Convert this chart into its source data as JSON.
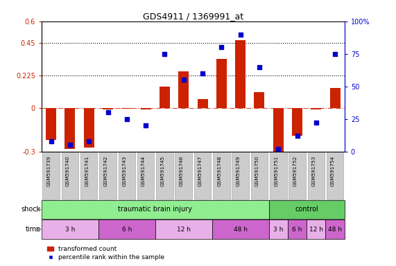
{
  "title": "GDS4911 / 1369991_at",
  "samples": [
    "GSM591739",
    "GSM591740",
    "GSM591741",
    "GSM591742",
    "GSM591743",
    "GSM591744",
    "GSM591745",
    "GSM591746",
    "GSM591747",
    "GSM591748",
    "GSM591749",
    "GSM591750",
    "GSM591751",
    "GSM591752",
    "GSM591753",
    "GSM591754"
  ],
  "red_values": [
    -0.22,
    -0.28,
    -0.27,
    -0.01,
    -0.005,
    -0.01,
    0.15,
    0.255,
    0.065,
    0.34,
    0.47,
    0.11,
    -0.33,
    -0.19,
    -0.01,
    0.14
  ],
  "blue_values_pct": [
    8,
    5,
    8,
    30,
    25,
    20,
    75,
    55,
    60,
    80,
    90,
    65,
    2,
    12,
    22,
    75
  ],
  "ylim_left": [
    -0.3,
    0.6
  ],
  "ylim_right": [
    0,
    100
  ],
  "yticks_left": [
    -0.3,
    0.0,
    0.225,
    0.45,
    0.6
  ],
  "ytick_labels_left": [
    "-0.3",
    "0",
    "0.225",
    "0.45",
    "0.6"
  ],
  "yticks_right": [
    0,
    25,
    50,
    75,
    100
  ],
  "ytick_labels_right": [
    "0",
    "25",
    "50",
    "75",
    "100%"
  ],
  "hlines": [
    0.225,
    0.45
  ],
  "zero_line": 0.0,
  "shock_groups": [
    {
      "label": "traumatic brain injury",
      "start": 0,
      "end": 12,
      "color": "#90ee90"
    },
    {
      "label": "control",
      "start": 12,
      "end": 16,
      "color": "#66cc66"
    }
  ],
  "time_groups": [
    {
      "label": "3 h",
      "start": 0,
      "end": 3,
      "color": "#e8b0e8"
    },
    {
      "label": "6 h",
      "start": 3,
      "end": 6,
      "color": "#cc66cc"
    },
    {
      "label": "12 h",
      "start": 6,
      "end": 9,
      "color": "#e8b0e8"
    },
    {
      "label": "48 h",
      "start": 9,
      "end": 12,
      "color": "#cc66cc"
    },
    {
      "label": "3 h",
      "start": 12,
      "end": 13,
      "color": "#e8b0e8"
    },
    {
      "label": "6 h",
      "start": 13,
      "end": 14,
      "color": "#cc66cc"
    },
    {
      "label": "12 h",
      "start": 14,
      "end": 15,
      "color": "#e8b0e8"
    },
    {
      "label": "48 h",
      "start": 15,
      "end": 16,
      "color": "#cc66cc"
    }
  ],
  "bar_color": "#cc2200",
  "dot_color": "#0000cc",
  "bg_color": "#ffffff",
  "axis_color_left": "#cc2200",
  "axis_color_right": "#0000cc",
  "bar_width": 0.55,
  "xtick_bg": "#cccccc",
  "label_shock": "shock",
  "label_time": "time",
  "legend_labels": [
    "transformed count",
    "percentile rank within the sample"
  ]
}
